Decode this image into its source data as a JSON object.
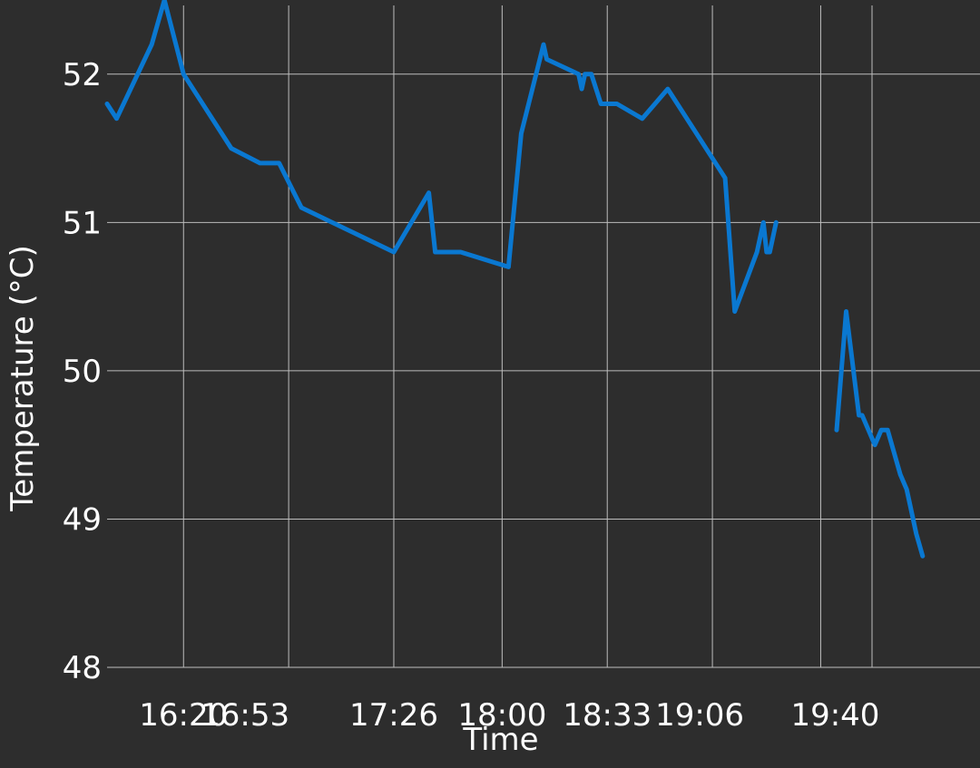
{
  "chart_data": {
    "type": "line",
    "title": "",
    "xlabel": "Time",
    "ylabel": "Temperature (°C)",
    "xlim": [
      "15:56",
      "20:30"
    ],
    "ylim": [
      48,
      52.5
    ],
    "x_tick_labels": [
      "16:20",
      "16:53",
      "17:26",
      "18:00",
      "18:33",
      "19:06",
      "19:40"
    ],
    "y_tick_labels": [
      "48",
      "49",
      "50",
      "51",
      "52"
    ],
    "y_ticks": [
      48,
      49,
      50,
      51,
      52
    ],
    "grid": true,
    "colors": {
      "background": "#2d2d2d",
      "grid": "#bdbdbd",
      "line": "#0a78d1",
      "text": "#ffffff"
    },
    "series": [
      {
        "segments": [
          [
            {
              "x": "15:56",
              "y": 51.8
            },
            {
              "x": "15:59",
              "y": 51.7
            },
            {
              "x": "16:10",
              "y": 52.2
            },
            {
              "x": "16:14",
              "y": 52.5
            },
            {
              "x": "16:20",
              "y": 52.0
            },
            {
              "x": "16:35",
              "y": 51.5
            },
            {
              "x": "16:44",
              "y": 51.4
            },
            {
              "x": "16:50",
              "y": 51.4
            },
            {
              "x": "16:57",
              "y": 51.1
            },
            {
              "x": "17:26",
              "y": 50.8
            },
            {
              "x": "17:37",
              "y": 51.2
            },
            {
              "x": "17:39",
              "y": 50.8
            },
            {
              "x": "17:47",
              "y": 50.8
            },
            {
              "x": "18:02",
              "y": 50.7
            },
            {
              "x": "18:06",
              "y": 51.6
            },
            {
              "x": "18:13",
              "y": 52.2
            },
            {
              "x": "18:14",
              "y": 52.1
            },
            {
              "x": "18:24",
              "y": 52.0
            },
            {
              "x": "18:25",
              "y": 51.9
            },
            {
              "x": "18:26",
              "y": 52.0
            },
            {
              "x": "18:28",
              "y": 52.0
            },
            {
              "x": "18:31",
              "y": 51.8
            },
            {
              "x": "18:36",
              "y": 51.8
            },
            {
              "x": "18:44",
              "y": 51.7
            },
            {
              "x": "18:52",
              "y": 51.9
            },
            {
              "x": "19:10",
              "y": 51.3
            },
            {
              "x": "19:13",
              "y": 50.4
            },
            {
              "x": "19:20",
              "y": 50.8
            },
            {
              "x": "19:22",
              "y": 51.0
            },
            {
              "x": "19:23",
              "y": 50.8
            },
            {
              "x": "19:24",
              "y": 50.8
            },
            {
              "x": "19:26",
              "y": 51.0
            }
          ],
          [
            {
              "x": "19:45",
              "y": 49.6
            },
            {
              "x": "19:48",
              "y": 50.4
            },
            {
              "x": "19:52",
              "y": 49.7
            },
            {
              "x": "19:53",
              "y": 49.7
            },
            {
              "x": "19:55",
              "y": 49.6
            },
            {
              "x": "19:57",
              "y": 49.5
            },
            {
              "x": "19:59",
              "y": 49.6
            },
            {
              "x": "20:01",
              "y": 49.6
            },
            {
              "x": "20:05",
              "y": 49.3
            },
            {
              "x": "20:07",
              "y": 49.2
            },
            {
              "x": "20:10",
              "y": 48.9
            },
            {
              "x": "20:12",
              "y": 48.75
            }
          ]
        ]
      }
    ]
  }
}
